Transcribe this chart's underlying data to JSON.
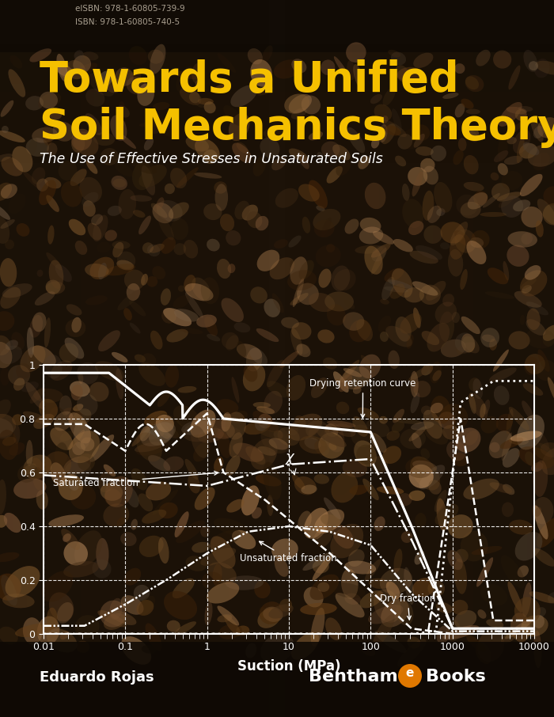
{
  "background_dark": "#1c1208",
  "background_mid": "#2e1e0e",
  "eisbn": "eISBN: 978-1-60805-739-9",
  "isbn": "ISBN: 978-1-60805-740-5",
  "isbn_color": "#aaa090",
  "title_line1": "Towards a Unified",
  "title_line2": "Soil Mechanics Theory",
  "title_color": "#f5c000",
  "subtitle": "The Use of Effective Stresses in Unsaturated Soils",
  "subtitle_color": "#ffffff",
  "author": "Eduardo Rojas",
  "author_color": "#ffffff",
  "publisher_e_color": "#e07800",
  "plot_facecolor": "none",
  "curve_color": "white",
  "xlabel": "Suction (MPa)",
  "xtick_labels": [
    "0.01",
    "0.1",
    "1",
    "10",
    "100",
    "1000",
    "10000"
  ],
  "ytick_labels": [
    "0",
    "0.2",
    "0.4",
    "0.6",
    "0.8",
    "1"
  ]
}
